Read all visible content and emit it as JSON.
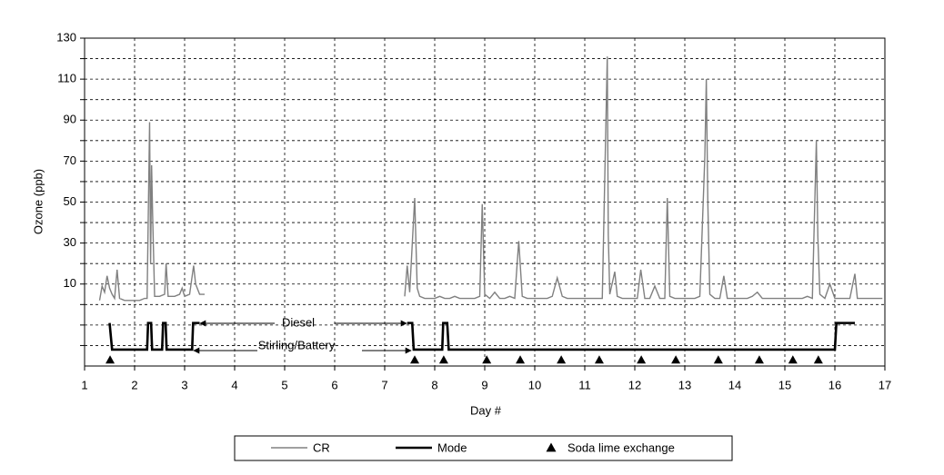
{
  "chart_data": {
    "type": "line",
    "x_label": "Day #",
    "y_label": "Ozone (ppb)",
    "xlim": [
      1,
      17
    ],
    "xticks": [
      1,
      2,
      3,
      4,
      5,
      6,
      7,
      8,
      9,
      10,
      11,
      12,
      13,
      14,
      15,
      16,
      17
    ],
    "ylim": [
      -30,
      130
    ],
    "yticks": [
      10,
      30,
      50,
      70,
      90,
      110,
      130
    ],
    "ygrid": [
      -20,
      -10,
      0,
      20,
      40,
      60,
      80,
      100,
      120
    ],
    "grid": true,
    "legend": "bottom",
    "annotations": [
      {
        "text": "Diesel"
      },
      {
        "text": "Stirling/Battery"
      }
    ],
    "series": [
      {
        "name": "CR",
        "type": "line",
        "color": "#808080",
        "x": [
          1.3,
          1.35,
          1.4,
          1.45,
          1.5,
          1.55,
          1.6,
          1.65,
          1.7,
          1.8,
          1.9,
          2.0,
          2.1,
          2.2,
          2.25,
          2.3,
          2.32,
          2.34,
          2.36,
          2.4,
          2.5,
          2.6,
          2.63,
          2.67,
          2.8,
          2.9,
          2.95,
          3.0,
          3.1,
          3.18,
          3.22,
          3.3,
          3.4,
          5,
          7.4,
          7.45,
          7.5,
          7.6,
          7.65,
          7.7,
          7.8,
          7.9,
          8.0,
          8.1,
          8.2,
          8.3,
          8.4,
          8.5,
          8.6,
          8.7,
          8.8,
          8.9,
          8.95,
          9.0,
          9.1,
          9.2,
          9.3,
          9.4,
          9.5,
          9.6,
          9.68,
          9.75,
          9.85,
          9.95,
          10.05,
          10.15,
          10.25,
          10.35,
          10.45,
          10.55,
          10.65,
          10.75,
          10.85,
          10.95,
          11.05,
          11.15,
          11.25,
          11.35,
          11.45,
          11.47,
          11.5,
          11.6,
          11.65,
          11.75,
          11.85,
          11.95,
          12.05,
          12.12,
          12.2,
          12.3,
          12.4,
          12.5,
          12.6,
          12.65,
          12.7,
          12.8,
          12.9,
          13.0,
          13.1,
          13.2,
          13.3,
          13.4,
          13.43,
          13.46,
          13.5,
          13.6,
          13.7,
          13.78,
          13.85,
          13.95,
          14.05,
          14.15,
          14.25,
          14.35,
          14.45,
          14.55,
          14.65,
          14.75,
          14.85,
          14.95,
          15.05,
          15.15,
          15.25,
          15.35,
          15.45,
          15.55,
          15.63,
          15.66,
          15.7,
          15.8,
          15.9,
          16.0,
          16.1,
          16.2,
          16.3,
          16.4,
          16.45,
          16.55,
          16.65,
          16.75,
          16.85,
          16.95
        ],
        "values": [
          2,
          9,
          6,
          14,
          8,
          5,
          3,
          17,
          3,
          2,
          2,
          2,
          2,
          3,
          3,
          89,
          20,
          68,
          44,
          4,
          4,
          5,
          20,
          4,
          4,
          5,
          8,
          4,
          5,
          19,
          10,
          5,
          5,
          null,
          4,
          19,
          6,
          52,
          8,
          4,
          3,
          3,
          3,
          4,
          3,
          3,
          4,
          3,
          3,
          3,
          3,
          4,
          49,
          5,
          3,
          6,
          3,
          3,
          4,
          3,
          31,
          4,
          3,
          3,
          3,
          3,
          3,
          4,
          13,
          4,
          3,
          3,
          3,
          3,
          3,
          3,
          3,
          3,
          121,
          34,
          5,
          16,
          4,
          3,
          3,
          3,
          3,
          17,
          3,
          3,
          9,
          3,
          3,
          52,
          4,
          3,
          3,
          3,
          3,
          3,
          4,
          72,
          110,
          50,
          5,
          3,
          3,
          14,
          3,
          3,
          3,
          3,
          3,
          4,
          6,
          3,
          3,
          3,
          3,
          3,
          3,
          3,
          3,
          3,
          4,
          3,
          80,
          33,
          5,
          3,
          10,
          3,
          3,
          3,
          3,
          15,
          3,
          3,
          3,
          3,
          3,
          3
        ]
      },
      {
        "name": "Mode",
        "type": "line",
        "color": "#000000",
        "x": [
          1.5,
          1.55,
          2.25,
          2.27,
          2.33,
          2.35,
          2.55,
          2.57,
          2.62,
          2.64,
          3.15,
          3.17,
          3.3,
          5,
          7.45,
          7.55,
          7.58,
          8.15,
          8.17,
          8.25,
          8.28,
          16.0,
          16.03,
          16.4
        ],
        "values": [
          -9,
          -22,
          -22,
          -9,
          -9,
          -22,
          -22,
          -9,
          -9,
          -22,
          -22,
          -9,
          -9,
          null,
          -9,
          -9,
          -22,
          -22,
          -9,
          -9,
          -22,
          -22,
          -9,
          -9
        ]
      },
      {
        "name": "Soda lime exchange",
        "type": "scatter",
        "color": "#000000",
        "x": [
          1.51,
          7.6,
          8.18,
          9.04,
          9.71,
          10.53,
          11.29,
          12.13,
          12.82,
          13.67,
          14.49,
          15.16,
          15.67
        ],
        "values": [
          -27,
          -27,
          -27,
          -27,
          -27,
          -27,
          -27,
          -27,
          -27,
          -27,
          -27,
          -27,
          -27
        ]
      }
    ]
  }
}
